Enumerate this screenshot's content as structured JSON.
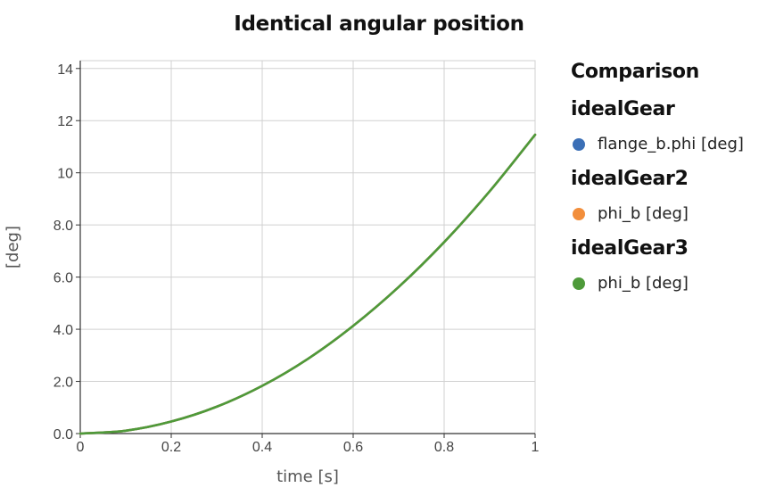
{
  "chart_data": {
    "type": "line",
    "title": "Identical angular position",
    "xlabel": "time [s]",
    "ylabel": "[deg]",
    "xlim": [
      0,
      1
    ],
    "ylim": [
      0,
      14.3
    ],
    "x_ticks": [
      0,
      0.2,
      0.4,
      0.6,
      0.8,
      1
    ],
    "x_tick_labels": [
      "0",
      "0.2",
      "0.4",
      "0.6",
      "0.8",
      "1"
    ],
    "y_ticks": [
      0,
      2,
      4,
      6,
      8,
      10,
      12,
      14
    ],
    "y_tick_labels": [
      "0.0",
      "2.0",
      "4.0",
      "6.0",
      "8.0",
      "10",
      "12",
      "14"
    ],
    "grid": true,
    "legend_position": "right",
    "x": [
      0,
      0.1,
      0.2,
      0.3,
      0.4,
      0.5,
      0.6,
      0.7,
      0.8,
      0.9,
      1.0
    ],
    "series": [
      {
        "name": "flange_b.phi [deg]",
        "color": "#3b6fb6",
        "values": [
          0,
          0.11,
          0.46,
          1.03,
          1.83,
          2.86,
          4.13,
          5.62,
          7.34,
          9.29,
          11.46
        ]
      },
      {
        "name": "phi_b [deg]",
        "color": "#f28e3b",
        "values": [
          0,
          0.11,
          0.46,
          1.03,
          1.83,
          2.86,
          4.13,
          5.62,
          7.34,
          9.29,
          11.46
        ]
      },
      {
        "name": "phi_b [deg]",
        "color": "#4e9a3a",
        "values": [
          0,
          0.11,
          0.46,
          1.03,
          1.83,
          2.86,
          4.13,
          5.62,
          7.34,
          9.29,
          11.46
        ]
      }
    ]
  },
  "legend": {
    "title": "Comparison",
    "groups": [
      {
        "title": "idealGear",
        "entry": "flange_b.phi [deg]",
        "color": "#3b6fb6"
      },
      {
        "title": "idealGear2",
        "entry": "phi_b [deg]",
        "color": "#f28e3b"
      },
      {
        "title": "idealGear3",
        "entry": "phi_b [deg]",
        "color": "#4e9a3a"
      }
    ]
  },
  "style": {
    "grid_color": "#d0d0d0",
    "axis_color": "#333333"
  }
}
